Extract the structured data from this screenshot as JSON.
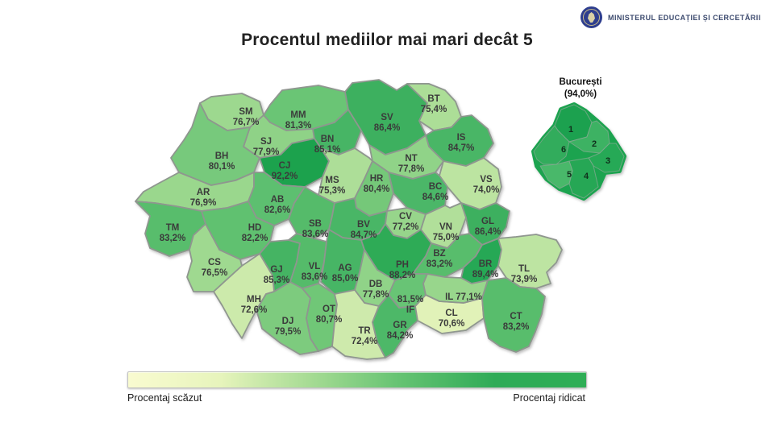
{
  "header": {
    "ministry": "MINISTERUL EDUCAȚIEI ȘI CERCETĂRII",
    "seal_color": "#2e3e8e"
  },
  "title": "Procentul mediilor mai mari decât 5",
  "map": {
    "counties": [
      {
        "code": "SM",
        "pct": "76,7%",
        "value": 76.7
      },
      {
        "code": "MM",
        "pct": "81,3%",
        "value": 81.3
      },
      {
        "code": "SJ",
        "pct": "77,9%",
        "value": 77.9
      },
      {
        "code": "BH",
        "pct": "80,1%",
        "value": 80.1
      },
      {
        "code": "BN",
        "pct": "85,1%",
        "value": 85.1
      },
      {
        "code": "CJ",
        "pct": "92,2%",
        "value": 92.2
      },
      {
        "code": "SV",
        "pct": "86,4%",
        "value": 86.4
      },
      {
        "code": "BT",
        "pct": "75,4%",
        "value": 75.4
      },
      {
        "code": "IS",
        "pct": "84,7%",
        "value": 84.7
      },
      {
        "code": "NT",
        "pct": "77,8%",
        "value": 77.8
      },
      {
        "code": "MS",
        "pct": "75,3%",
        "value": 75.3
      },
      {
        "code": "HR",
        "pct": "80,4%",
        "value": 80.4
      },
      {
        "code": "VS",
        "pct": "74,0%",
        "value": 74.0
      },
      {
        "code": "BC",
        "pct": "84,6%",
        "value": 84.6
      },
      {
        "code": "AR",
        "pct": "76,9%",
        "value": 76.9
      },
      {
        "code": "AB",
        "pct": "82,6%",
        "value": 82.6
      },
      {
        "code": "TM",
        "pct": "83,2%",
        "value": 83.2
      },
      {
        "code": "HD",
        "pct": "82,2%",
        "value": 82.2
      },
      {
        "code": "SB",
        "pct": "83,6%",
        "value": 83.6
      },
      {
        "code": "BV",
        "pct": "84,7%",
        "value": 84.7
      },
      {
        "code": "CV",
        "pct": "77,2%",
        "value": 77.2
      },
      {
        "code": "VN",
        "pct": "75,0%",
        "value": 75.0
      },
      {
        "code": "GL",
        "pct": "86,4%",
        "value": 86.4
      },
      {
        "code": "CS",
        "pct": "76,5%",
        "value": 76.5
      },
      {
        "code": "GJ",
        "pct": "85,3%",
        "value": 85.3
      },
      {
        "code": "VL",
        "pct": "83,6%",
        "value": 83.6
      },
      {
        "code": "AG",
        "pct": "85,0%",
        "value": 85.0
      },
      {
        "code": "PH",
        "pct": "88,2%",
        "value": 88.2
      },
      {
        "code": "BZ",
        "pct": "83,2%",
        "value": 83.2
      },
      {
        "code": "BR",
        "pct": "89,4%",
        "value": 89.4
      },
      {
        "code": "TL",
        "pct": "73,9%",
        "value": 73.9
      },
      {
        "code": "DB",
        "pct": "77,8%",
        "value": 77.8
      },
      {
        "code": "MH",
        "pct": "72,6%",
        "value": 72.6
      },
      {
        "code": "DJ",
        "pct": "79,5%",
        "value": 79.5
      },
      {
        "code": "OT",
        "pct": "80,7%",
        "value": 80.7
      },
      {
        "code": "TR",
        "pct": "72,4%",
        "value": 72.4
      },
      {
        "code": "GR",
        "pct": "84,2%",
        "value": 84.2
      },
      {
        "code": "CL",
        "pct": "70,6%",
        "value": 70.6
      },
      {
        "code": "IF",
        "pct": "81,5%",
        "value": 81.5
      },
      {
        "code": "IL",
        "pct": "77,1%",
        "value": 77.1
      },
      {
        "code": "CT",
        "pct": "83,2%",
        "value": 83.2
      }
    ],
    "border_color": "#8f968f",
    "label_color": "#3b3b3b",
    "color_scale": [
      [
        70,
        "#e7f4bc"
      ],
      [
        73,
        "#c8e8a8"
      ],
      [
        76,
        "#a5db93"
      ],
      [
        79,
        "#82cd80"
      ],
      [
        82,
        "#63c271"
      ],
      [
        85,
        "#47b565"
      ],
      [
        88,
        "#2fab57"
      ],
      [
        91,
        "#1fa550"
      ],
      [
        94,
        "#149e49"
      ]
    ]
  },
  "bucharest": {
    "name": "București",
    "pct": "(94,0%)",
    "sectors": [
      "1",
      "2",
      "3",
      "4",
      "5",
      "6"
    ],
    "sector_colors": [
      "#1da150",
      "#3eb264",
      "#28a957",
      "#27a755",
      "#4ab86a",
      "#30ac5b"
    ],
    "base_color": "#1ea350"
  },
  "legend": {
    "low_label": "Procentaj scăzut",
    "high_label": "Procentaj ridicat",
    "gradient": [
      "#f9fbd0",
      "#e7f4bc",
      "#a5db93",
      "#63c271",
      "#2fab57",
      "#2fae56"
    ]
  }
}
